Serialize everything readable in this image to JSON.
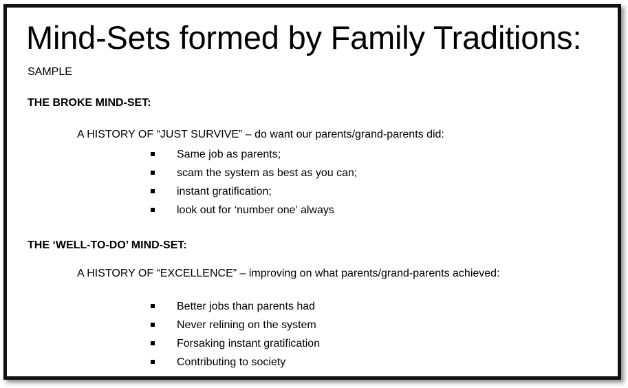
{
  "title": "Mind-Sets formed by Family Traditions:",
  "subtitle": "SAMPLE",
  "sections": [
    {
      "heading": "THE BROKE MIND-SET:",
      "history": "A HISTORY OF “JUST SURVIVE” – do want our parents/grand-parents did:",
      "bullets": [
        "Same job as parents;",
        "scam the system as best as you can;",
        "instant gratification;",
        "look out for ‘number one’ always"
      ]
    },
    {
      "heading": "THE ‘WELL-TO-DO’ MIND-SET:",
      "history": "A HISTORY OF “EXCELLENCE” – improving on what parents/grand-parents achieved:",
      "bullets": [
        "Better jobs than parents had",
        "Never relining on the system",
        "Forsaking instant gratification",
        "Contributing to society"
      ]
    }
  ]
}
